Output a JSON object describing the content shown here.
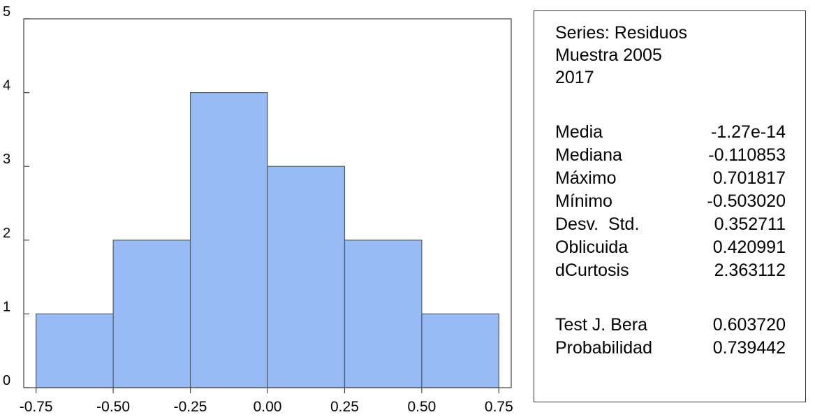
{
  "chart_data": {
    "type": "bar",
    "bins": [
      {
        "x0": -0.75,
        "x1": -0.5,
        "count": 1
      },
      {
        "x0": -0.5,
        "x1": -0.25,
        "count": 2
      },
      {
        "x0": -0.25,
        "x1": 0.0,
        "count": 4
      },
      {
        "x0": 0.0,
        "x1": 0.25,
        "count": 3
      },
      {
        "x0": 0.25,
        "x1": 0.5,
        "count": 2
      },
      {
        "x0": 0.5,
        "x1": 0.75,
        "count": 1
      }
    ],
    "xticks": [
      "-0.75",
      "-0.50",
      "-0.25",
      "0.00",
      "0.25",
      "0.50",
      "0.75"
    ],
    "xtick_values": [
      -0.75,
      -0.5,
      -0.25,
      0.0,
      0.25,
      0.5,
      0.75
    ],
    "yticks": [
      "0",
      "1",
      "2",
      "3",
      "4",
      "5"
    ],
    "ytick_values": [
      0,
      1,
      2,
      3,
      4,
      5
    ],
    "xlim": [
      -0.79,
      0.79
    ],
    "ylim": [
      0,
      5
    ],
    "grid": false,
    "bar_color": "#99bbf5",
    "bar_stroke": "#4f5a6a"
  },
  "stats": {
    "series": "Series: Residuos",
    "sample_line1": "Muestra 2005",
    "sample_line2": "2017",
    "rows": [
      {
        "label": "Media",
        "value": "-1.27e-14"
      },
      {
        "label": "Mediana",
        "value": "-0.110853"
      },
      {
        "label": "Máximo",
        "value": "0.701817"
      },
      {
        "label": "Mínimo",
        "value": "-0.503020"
      },
      {
        "label": "Desv.  Std.",
        "value": "0.352711"
      },
      {
        "label": "Oblicuida",
        "value": "0.420991"
      },
      {
        "label": "dCurtosis",
        "value": "2.363112"
      }
    ],
    "tests": [
      {
        "label": "Test J. Bera",
        "value": "0.603720"
      },
      {
        "label": "Probabilidad",
        "value": "0.739442"
      }
    ]
  }
}
